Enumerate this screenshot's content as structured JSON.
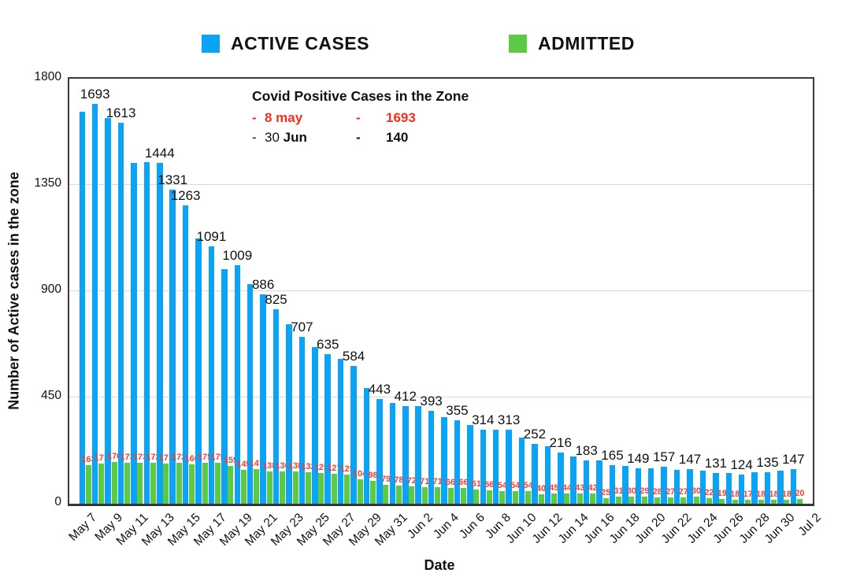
{
  "legend": [
    {
      "label": "ACTIVE CASES",
      "color": "#0ba3f5"
    },
    {
      "label": "ADMITTED",
      "color": "#5bcb43"
    }
  ],
  "annotation": {
    "title": "Covid Positive Cases in the Zone",
    "rows": [
      {
        "dash": "-",
        "date_normal": "",
        "date_bold": "8 may",
        "sep": "-",
        "value": "1693",
        "style": "red"
      },
      {
        "dash": "-",
        "date_normal": "30 ",
        "date_bold": "Jun",
        "sep": "-",
        "value": "140",
        "style": "dark"
      }
    ]
  },
  "chart_data": {
    "type": "bar",
    "title": "Covid Positive Cases in the Zone",
    "xlabel": "Date",
    "ylabel": "Number of Active cases in the zone",
    "ylim": [
      0,
      1800
    ],
    "yticks": [
      0,
      450,
      900,
      1350,
      1800
    ],
    "grid": true,
    "legend_position": "top",
    "colors": {
      "active": "#0ba3f5",
      "admitted": "#5bcb43",
      "admitted_label": "#fc3d2d",
      "gridline": "#d9d9d9",
      "axis": "#3b3b3b"
    },
    "xticklabels": [
      "May 7",
      "May 9",
      "May 11",
      "May 13",
      "May 15",
      "May 17",
      "May 19",
      "May 21",
      "May 23",
      "May 25",
      "May 27",
      "May 29",
      "May 31",
      "Jun 2",
      "Jun 4",
      "Jun 6",
      "Jun 8",
      "Jun 10",
      "Jun 12",
      "Jun 14",
      "Jun 16",
      "Jun 18",
      "Jun 20",
      "Jun 22",
      "Jun 24",
      "Jun 26",
      "Jun 28",
      "Jun 30",
      "Jul 2"
    ],
    "categories": [
      "May 7",
      "May 8",
      "May 9",
      "May 10",
      "May 11",
      "May 12",
      "May 13",
      "May 14",
      "May 15",
      "May 16",
      "May 17",
      "May 18",
      "May 19",
      "May 20",
      "May 21",
      "May 22",
      "May 23",
      "May 24",
      "May 25",
      "May 26",
      "May 27",
      "May 28",
      "May 29",
      "May 30",
      "May 31",
      "Jun 1",
      "Jun 2",
      "Jun 3",
      "Jun 4",
      "Jun 5",
      "Jun 6",
      "Jun 7",
      "Jun 8",
      "Jun 9",
      "Jun 10",
      "Jun 11",
      "Jun 12",
      "Jun 13",
      "Jun 14",
      "Jun 15",
      "Jun 16",
      "Jun 17",
      "Jun 18",
      "Jun 19",
      "Jun 20",
      "Jun 21",
      "Jun 22",
      "Jun 23",
      "Jun 24",
      "Jun 25",
      "Jun 26",
      "Jun 27",
      "Jun 28",
      "Jun 29",
      "Jun 30",
      "Jul 1"
    ],
    "series": [
      {
        "name": "ACTIVE CASES",
        "values": [
          1660,
          1693,
          1635,
          1613,
          1445,
          1446,
          1444,
          1331,
          1263,
          1125,
          1091,
          995,
          1009,
          930,
          886,
          825,
          760,
          707,
          665,
          635,
          612,
          584,
          490,
          443,
          428,
          412,
          415,
          393,
          368,
          355,
          335,
          314,
          315,
          313,
          280,
          252,
          245,
          216,
          200,
          183,
          182,
          165,
          160,
          149,
          150,
          157,
          145,
          147,
          139,
          131,
          130,
          124,
          134,
          135,
          140,
          147
        ],
        "labels": [
          null,
          "1693",
          null,
          "1613",
          null,
          null,
          "1444",
          "1331",
          "1263",
          null,
          "1091",
          null,
          "1009",
          null,
          "886",
          "825",
          null,
          "707",
          null,
          "635",
          null,
          "584",
          null,
          "443",
          null,
          "412",
          null,
          "393",
          null,
          "355",
          null,
          "314",
          null,
          "313",
          null,
          "252",
          null,
          "216",
          null,
          "183",
          null,
          "165",
          null,
          "149",
          null,
          "157",
          null,
          "147",
          null,
          "131",
          null,
          "124",
          null,
          "135",
          null,
          "147"
        ]
      },
      {
        "name": "ADMITTED",
        "values": [
          163,
          171,
          176,
          173,
          173,
          172,
          171,
          172,
          166,
          175,
          175,
          159,
          145,
          147,
          138,
          136,
          138,
          132,
          129,
          127,
          125,
          104,
          98,
          79,
          78,
          72,
          71,
          71,
          66,
          66,
          61,
          56,
          54,
          54,
          54,
          40,
          45,
          44,
          43,
          42,
          25,
          31,
          30,
          29,
          28,
          27,
          27,
          30,
          22,
          19,
          18,
          17,
          18,
          18,
          18,
          20
        ]
      }
    ]
  }
}
